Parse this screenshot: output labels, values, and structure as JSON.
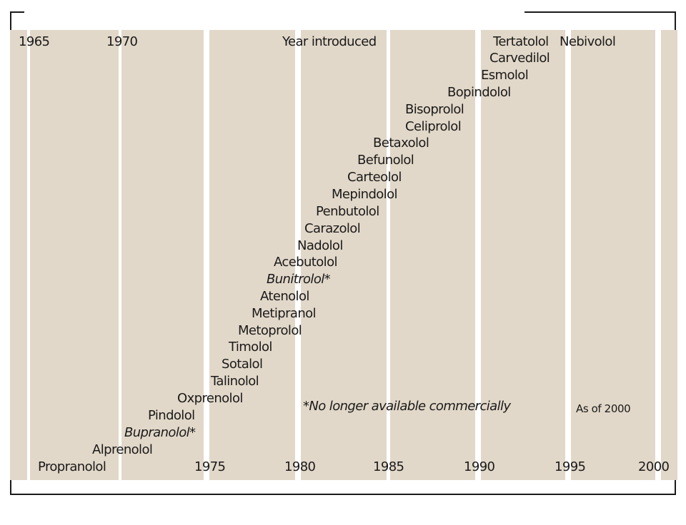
{
  "header": {
    "label_1965": "1965",
    "label_1970": "1970",
    "title": "Year introduced"
  },
  "axis_years": [
    "1975",
    "1980",
    "1985",
    "1990",
    "1995",
    "2000"
  ],
  "drugs": [
    {
      "name": "Propranolol",
      "italic": false
    },
    {
      "name": "Alprenolol",
      "italic": false
    },
    {
      "name": "Bupranolol*",
      "italic": true
    },
    {
      "name": "Pindolol",
      "italic": false
    },
    {
      "name": "Oxprenolol",
      "italic": false
    },
    {
      "name": "Talinolol",
      "italic": false
    },
    {
      "name": "Sotalol",
      "italic": false
    },
    {
      "name": "Timolol",
      "italic": false
    },
    {
      "name": "Metoprolol",
      "italic": false
    },
    {
      "name": "Metipranol",
      "italic": false
    },
    {
      "name": "Atenolol",
      "italic": false
    },
    {
      "name": "Bunitrolol*",
      "italic": true
    },
    {
      "name": "Acebutolol",
      "italic": false
    },
    {
      "name": "Nadolol",
      "italic": false
    },
    {
      "name": "Carazolol",
      "italic": false
    },
    {
      "name": "Penbutolol",
      "italic": false
    },
    {
      "name": "Mepindolol",
      "italic": false
    },
    {
      "name": "Carteolol",
      "italic": false
    },
    {
      "name": "Befunolol",
      "italic": false
    },
    {
      "name": "Betaxolol",
      "italic": false
    },
    {
      "name": "Celiprolol",
      "italic": false
    },
    {
      "name": "Bisoprolol",
      "italic": false
    },
    {
      "name": "Bopindolol",
      "italic": false
    },
    {
      "name": "Esmolol",
      "italic": false
    },
    {
      "name": "Carvedilol",
      "italic": false
    },
    {
      "name": "Tertatolol",
      "italic": false
    },
    {
      "name": "Nebivolol",
      "italic": false
    }
  ],
  "notes": {
    "footnote": "*No longer available commercially",
    "as_of": "As of 2000"
  },
  "colors": {
    "band": "#e2d8c9",
    "gap": "#ffffff",
    "text": "#1a1a1a"
  }
}
